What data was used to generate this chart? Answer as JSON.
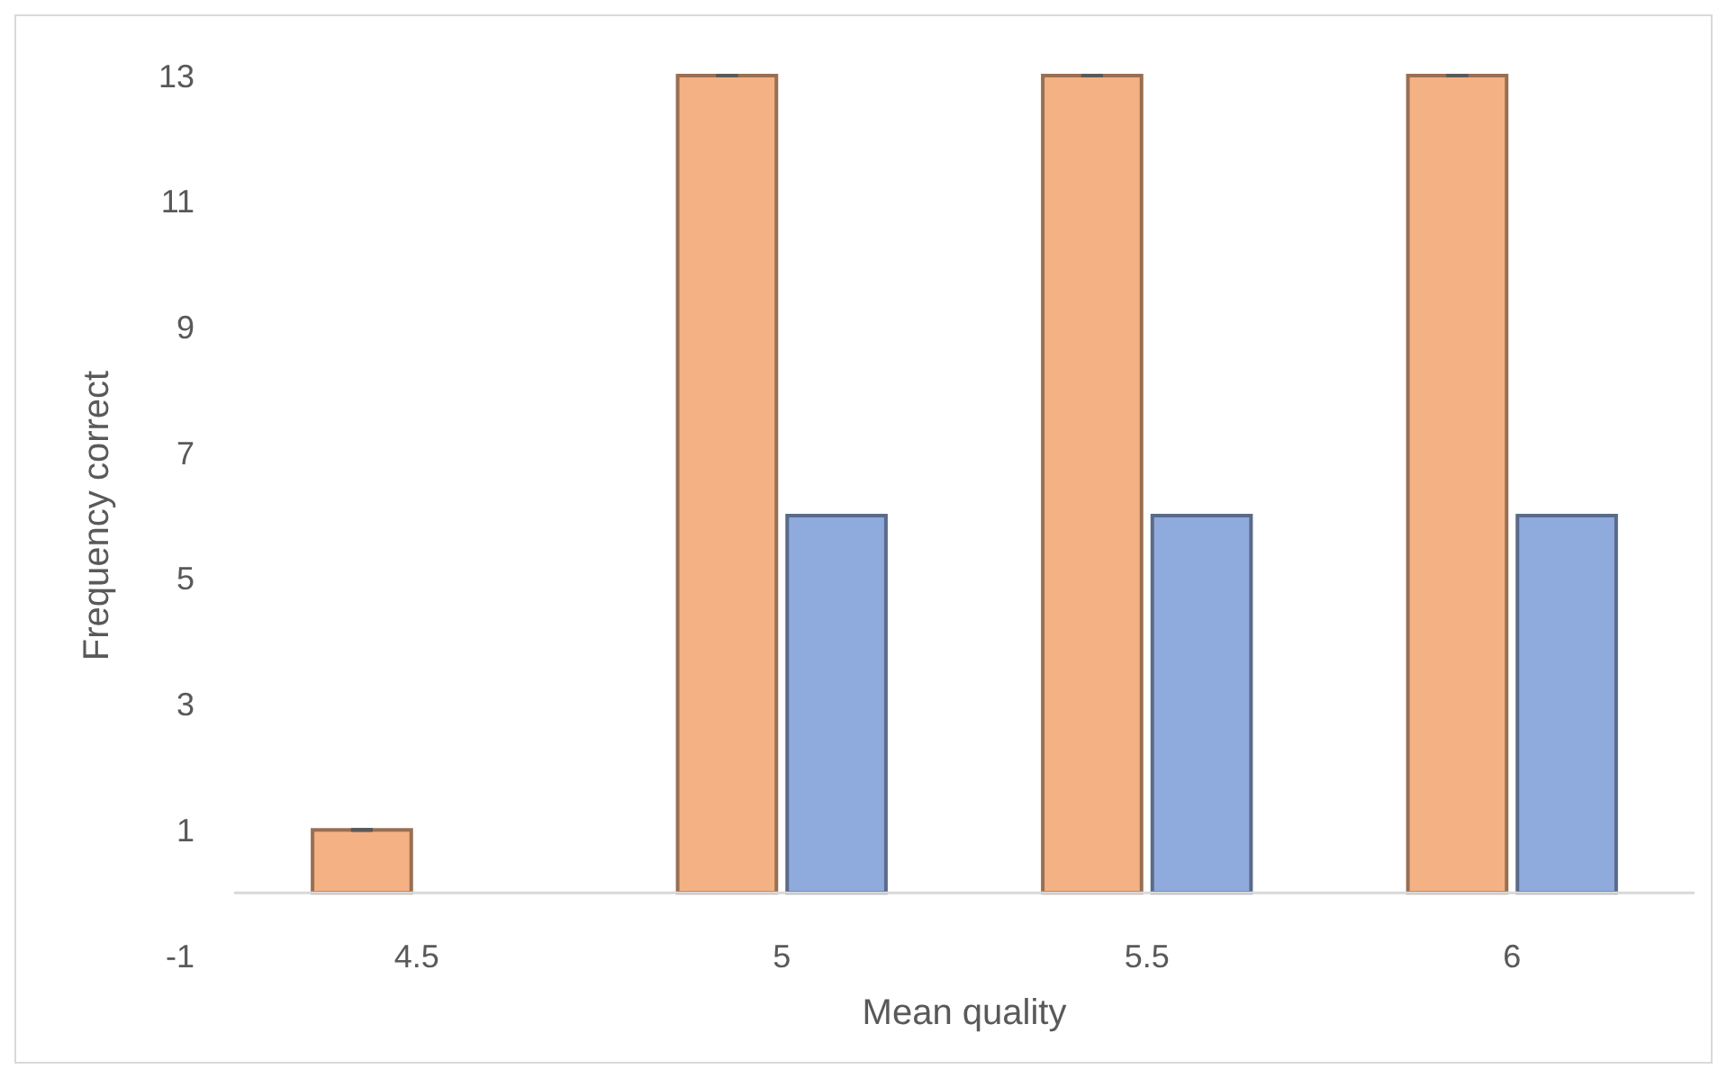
{
  "chart_data": {
    "type": "bar",
    "xlabel": "Mean quality",
    "ylabel": "Frequency correct",
    "categories": [
      "4.5",
      "5",
      "5.5",
      "6"
    ],
    "series": [
      {
        "color": "#f4b183",
        "values": [
          1,
          13,
          13,
          13
        ],
        "errors": [
          0,
          0,
          0,
          0
        ]
      },
      {
        "color": "#8faadc",
        "values": [
          0,
          6,
          6,
          6
        ]
      }
    ],
    "ylim": [
      -1,
      13
    ],
    "yticks": [
      -1,
      1,
      3,
      5,
      7,
      9,
      11,
      13
    ]
  }
}
